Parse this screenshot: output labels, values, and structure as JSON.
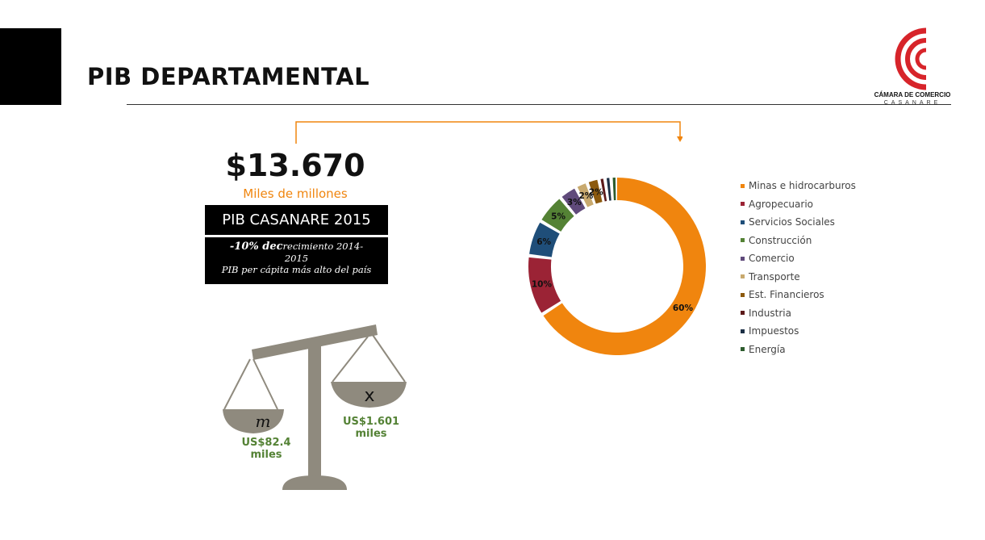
{
  "header": {
    "title": "PIB DEPARTAMENTAL"
  },
  "logo": {
    "name": "CÁMARA DE COMERCIO",
    "sub": "CASANARE"
  },
  "summary": {
    "value": "$13.670",
    "unit": "Miles de millones",
    "box_title": "PIB CASANARE 2015",
    "line1_bold": "-10% dec",
    "line1_rest": "recimiento 2014-",
    "line2": "2015",
    "line3": "PIB per cápita más alto del país"
  },
  "scale": {
    "left_letter": "m",
    "right_letter": "x",
    "left_value": "US$82.4",
    "left_unit": "miles",
    "right_value": "US$1.601",
    "right_unit": "miles"
  },
  "chart_data": {
    "type": "pie",
    "title": "",
    "legend_position": "right",
    "labels": [
      "Minas e hidrocarburos",
      "Agropecuario",
      "Servicios Sociales",
      "Construcción",
      "Comercio",
      "Transporte",
      "Est. Financieros",
      "Industria",
      "Impuestos",
      "Energía"
    ],
    "values": [
      60,
      10,
      6,
      5,
      3,
      2,
      2,
      1,
      1,
      1
    ],
    "data_labels": [
      "60%",
      "10%",
      "6%",
      "5%",
      "3%",
      "2%",
      "2%",
      "",
      "",
      ""
    ],
    "colors": [
      "#f0850e",
      "#9b2335",
      "#1f4e79",
      "#548235",
      "#604a7b",
      "#c8a96e",
      "#8c5a0e",
      "#5c1a1a",
      "#1c2f45",
      "#2e5c2e"
    ]
  }
}
